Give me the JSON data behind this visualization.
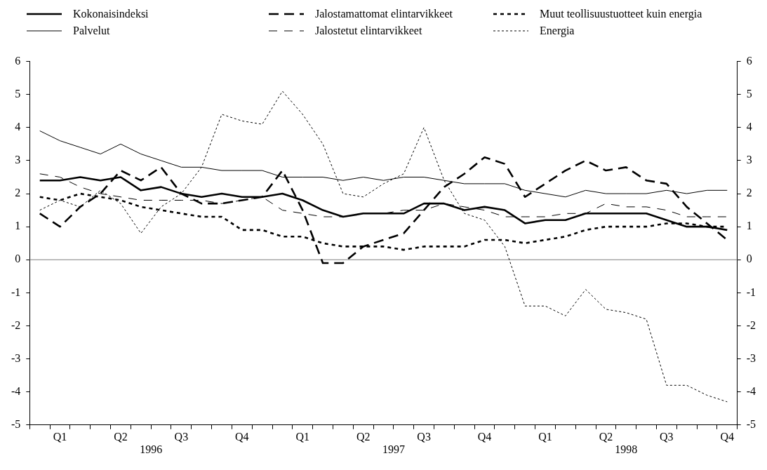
{
  "chart_data": {
    "type": "line",
    "categories": [
      null,
      "Q1",
      null,
      null,
      "Q2",
      null,
      null,
      "Q3",
      null,
      null,
      "Q4",
      null,
      null,
      "Q1",
      null,
      null,
      "Q2",
      null,
      null,
      "Q3",
      null,
      null,
      "Q4",
      null,
      null,
      "Q1",
      null,
      null,
      "Q2",
      null,
      null,
      "Q3",
      null,
      null,
      "Q4"
    ],
    "series": [
      {
        "name": "Kokonaisindeksi",
        "color": "#000000",
        "line_style": "solid",
        "values": [
          2.4,
          2.4,
          2.5,
          2.4,
          2.5,
          2.1,
          2.2,
          2.0,
          1.9,
          2.0,
          1.9,
          1.9,
          2.0,
          1.8,
          1.5,
          1.3,
          1.4,
          1.4,
          1.4,
          1.7,
          1.7,
          1.5,
          1.6,
          1.5,
          1.1,
          1.2,
          1.2,
          1.4,
          1.4,
          1.4,
          1.4,
          1.2,
          1.0,
          1.0,
          0.9
        ]
      },
      {
        "name": "Jalostamattomat elintarvikkeet",
        "color": "#000000",
        "line_style": "dashed",
        "values": [
          1.4,
          1.0,
          1.6,
          2.0,
          2.7,
          2.4,
          2.8,
          2.0,
          1.7,
          1.7,
          1.8,
          1.9,
          2.7,
          1.5,
          -0.1,
          -0.1,
          0.4,
          0.6,
          0.8,
          1.5,
          2.2,
          2.6,
          3.1,
          2.9,
          1.9,
          2.3,
          2.7,
          3.0,
          2.7,
          2.8,
          2.4,
          2.3,
          1.6,
          1.1,
          0.6
        ]
      },
      {
        "name": "Muut teollisuustuotteet kuin energia",
        "color": "#000000",
        "line_style": "dotted",
        "values": [
          1.9,
          1.8,
          2.0,
          1.9,
          1.8,
          1.6,
          1.5,
          1.4,
          1.3,
          1.3,
          0.9,
          0.9,
          0.7,
          0.7,
          0.5,
          0.4,
          0.4,
          0.4,
          0.3,
          0.4,
          0.4,
          0.4,
          0.6,
          0.6,
          0.5,
          0.6,
          0.7,
          0.9,
          1.0,
          1.0,
          1.0,
          1.1,
          1.1,
          1.0,
          1.0
        ]
      },
      {
        "name": "Palvelut",
        "color": "#000000",
        "line_style": "solid",
        "values": [
          3.9,
          3.6,
          3.4,
          3.2,
          3.5,
          3.2,
          3.0,
          2.8,
          2.8,
          2.7,
          2.7,
          2.7,
          2.5,
          2.5,
          2.5,
          2.4,
          2.5,
          2.4,
          2.5,
          2.5,
          2.4,
          2.3,
          2.3,
          2.3,
          2.1,
          2.0,
          1.9,
          2.1,
          2.0,
          2.0,
          2.0,
          2.1,
          2.0,
          2.1,
          2.1
        ]
      },
      {
        "name": "Jalostetut elintarvikkeet",
        "color": "#000000",
        "line_style": "dashed",
        "values": [
          2.6,
          2.5,
          2.2,
          2.0,
          1.9,
          1.8,
          1.8,
          1.8,
          1.8,
          1.7,
          1.8,
          1.9,
          1.5,
          1.4,
          1.3,
          1.3,
          1.4,
          1.4,
          1.5,
          1.5,
          1.7,
          1.6,
          1.5,
          1.3,
          1.3,
          1.3,
          1.4,
          1.4,
          1.7,
          1.6,
          1.6,
          1.5,
          1.3,
          1.3,
          1.3
        ]
      },
      {
        "name": "Energia",
        "color": "#000000",
        "line_style": "dotted",
        "values": [
          1.5,
          1.8,
          1.6,
          2.1,
          1.7,
          0.8,
          1.6,
          2.0,
          2.8,
          4.4,
          4.2,
          4.1,
          5.1,
          4.4,
          3.5,
          2.0,
          1.9,
          2.3,
          2.6,
          4.0,
          2.4,
          1.4,
          1.2,
          0.4,
          -1.4,
          -1.4,
          -1.7,
          -0.9,
          -1.5,
          -1.6,
          -1.8,
          -3.8,
          -3.8,
          -4.1,
          -4.3
        ]
      }
    ],
    "ylim": [
      -5,
      6
    ],
    "yticks": [
      -5,
      -4,
      -3,
      -2,
      -1,
      0,
      1,
      2,
      3,
      4,
      5,
      6
    ],
    "y2lim": [
      -5,
      6
    ],
    "y2ticks": [
      -5,
      -4,
      -3,
      -2,
      -1,
      0,
      1,
      2,
      3,
      4,
      5,
      6
    ],
    "ref_lines": [
      {
        "axis": "y",
        "value": 0,
        "color": "#808080"
      }
    ],
    "annotations": [
      "1996",
      "1997",
      "1998"
    ],
    "legend": "top",
    "grid": false
  }
}
